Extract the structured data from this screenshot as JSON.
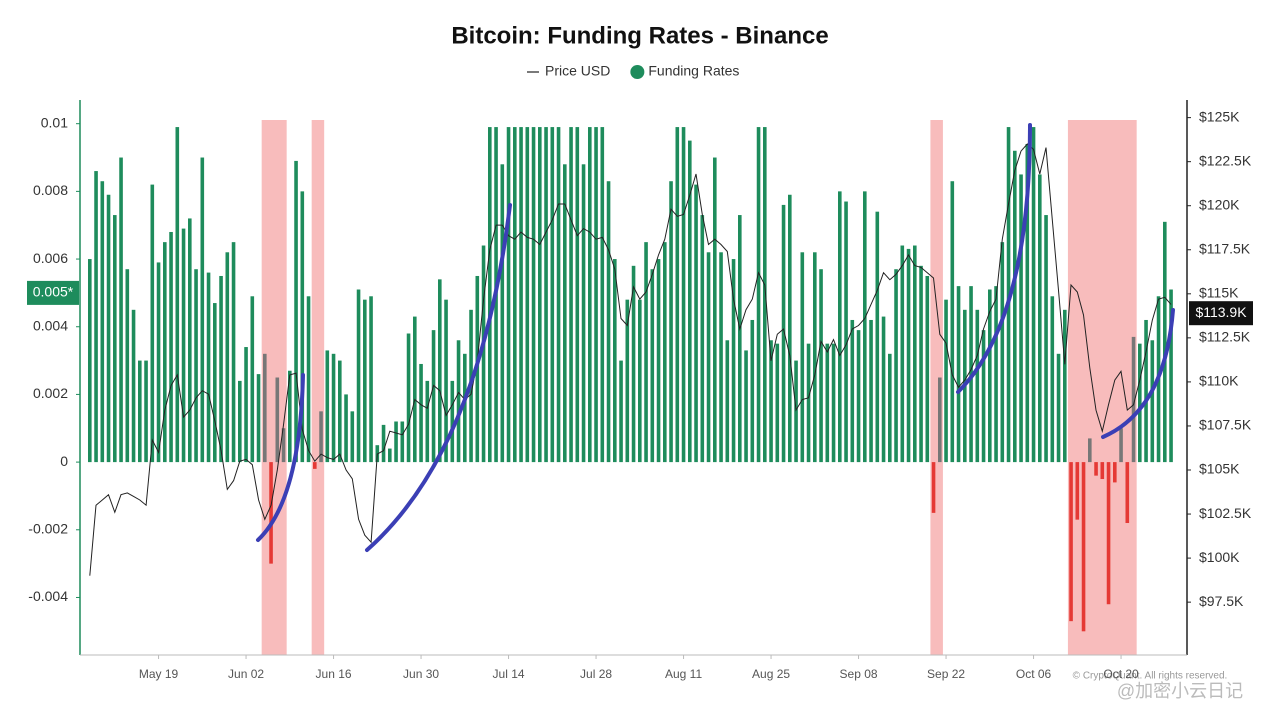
{
  "chart_data": {
    "type": "bar",
    "title": "Bitcoin: Funding Rates - Binance",
    "categories": [
      null,
      null,
      null,
      null,
      null,
      null,
      null,
      null,
      null,
      null,
      null,
      "May 19",
      null,
      null,
      null,
      null,
      null,
      null,
      null,
      null,
      null,
      null,
      null,
      null,
      null,
      "Jun 02",
      null,
      null,
      null,
      null,
      null,
      null,
      null,
      null,
      null,
      null,
      null,
      null,
      null,
      "Jun 16",
      null,
      null,
      null,
      null,
      null,
      null,
      null,
      null,
      null,
      null,
      null,
      null,
      null,
      "Jun 30",
      null,
      null,
      null,
      null,
      null,
      null,
      null,
      null,
      null,
      null,
      null,
      null,
      null,
      "Jul 14",
      null,
      null,
      null,
      null,
      null,
      null,
      null,
      null,
      null,
      null,
      null,
      null,
      null,
      "Jul 28",
      null,
      null,
      null,
      null,
      null,
      null,
      null,
      null,
      null,
      null,
      null,
      null,
      null,
      "Aug 11",
      null,
      null,
      null,
      null,
      null,
      null,
      null,
      null,
      null,
      null,
      null,
      null,
      null,
      "Aug 25",
      null,
      null,
      null,
      null,
      null,
      null,
      null,
      null,
      null,
      null,
      null,
      null,
      null,
      "Sep 08",
      null,
      null,
      null,
      null,
      null,
      null,
      null,
      null,
      null,
      null,
      null,
      null,
      null,
      "Sep 22",
      null,
      null,
      null,
      null,
      null,
      null,
      null,
      null,
      null,
      null,
      null,
      null,
      null,
      "Oct 06",
      null,
      null,
      null,
      null,
      null,
      null,
      null,
      null,
      null,
      null,
      null,
      null,
      null,
      "Oct 20",
      null,
      null,
      null,
      null,
      null,
      null,
      null,
      null
    ],
    "series": [
      {
        "name": "Price USD",
        "type": "line",
        "color": "#222222",
        "axis": "y2",
        "values": [
          99000,
          103000,
          103300,
          103600,
          102600,
          103600,
          103700,
          103500,
          103300,
          103000,
          106700,
          106000,
          108400,
          109800,
          110400,
          108000,
          108400,
          109100,
          109500,
          109300,
          107800,
          106100,
          103900,
          104400,
          105500,
          105600,
          105300,
          103300,
          102200,
          103000,
          105000,
          107600,
          110400,
          110500,
          107300,
          106100,
          105500,
          105900,
          105700,
          105600,
          105900,
          105000,
          104500,
          102200,
          101300,
          100900,
          105900,
          106100,
          107200,
          107100,
          107000,
          107600,
          109000,
          108700,
          108500,
          109800,
          109500,
          108100,
          108700,
          109400,
          109000,
          109300,
          111200,
          114700,
          117500,
          118900,
          118900,
          118300,
          118100,
          118500,
          118200,
          118100,
          117800,
          118500,
          119200,
          120100,
          120100,
          119200,
          118300,
          118700,
          118500,
          118100,
          118200,
          117500,
          116400,
          113600,
          113200,
          115400,
          114700,
          115100,
          116100,
          117200,
          118100,
          119800,
          119400,
          119500,
          120600,
          121800,
          119500,
          117800,
          118100,
          117800,
          117400,
          114700,
          113000,
          114100,
          114700,
          116200,
          115500,
          111200,
          112700,
          113000,
          111500,
          108400,
          109000,
          109100,
          110400,
          112300,
          111700,
          112400,
          111500,
          112100,
          113000,
          113200,
          113600,
          114400,
          115200,
          116200,
          115800,
          116100,
          116600,
          117200,
          116600,
          116500,
          116200,
          115900,
          112700,
          112200,
          110400,
          109700,
          110100,
          110700,
          111500,
          113000,
          114000,
          114700,
          118100,
          120100,
          122000,
          123100,
          123500,
          123200,
          121800,
          123300,
          119200,
          115200,
          111000,
          115500,
          115100,
          113800,
          110800,
          108400,
          107200,
          108700,
          110100,
          110600,
          108400,
          108700,
          110100,
          111700,
          113500,
          114700,
          114800,
          114400
        ]
      },
      {
        "name": "Funding Rates",
        "type": "bar",
        "color": "#1e8c5c",
        "values": [
          0.006,
          0.0086,
          0.0083,
          0.0079,
          0.0073,
          0.009,
          0.0057,
          0.0045,
          0.003,
          0.003,
          0.0082,
          0.0059,
          0.0065,
          0.0068,
          0.0099,
          0.0069,
          0.0072,
          0.0057,
          0.009,
          0.0056,
          0.0047,
          0.0055,
          0.0062,
          0.0065,
          0.0024,
          0.0034,
          0.0049,
          0.0026,
          0.0032,
          -0.003,
          0.0025,
          0.001,
          0.0027,
          0.0089,
          0.008,
          0.0049,
          -0.0002,
          0.0015,
          0.0033,
          0.0032,
          0.003,
          0.002,
          0.0015,
          0.0051,
          0.0048,
          0.0049,
          0.0005,
          0.0011,
          0.0004,
          0.0012,
          0.0012,
          0.0038,
          0.0043,
          0.0029,
          0.0024,
          0.0039,
          0.0054,
          0.0048,
          0.0024,
          0.0036,
          0.0032,
          0.0045,
          0.0055,
          0.0064,
          0.0099,
          0.0099,
          0.0088,
          0.0099,
          0.0099,
          0.0099,
          0.0099,
          0.0099,
          0.0099,
          0.0099,
          0.0099,
          0.0099,
          0.0088,
          0.0099,
          0.0099,
          0.0088,
          0.0099,
          0.0099,
          0.0099,
          0.0083,
          0.006,
          0.003,
          0.0048,
          0.0058,
          0.0048,
          0.0065,
          0.0057,
          0.006,
          0.0065,
          0.0083,
          0.0099,
          0.0099,
          0.0095,
          0.0082,
          0.0073,
          0.0062,
          0.009,
          0.0062,
          0.0036,
          0.006,
          0.0073,
          0.0033,
          0.0042,
          0.0099,
          0.0099,
          0.0036,
          0.0035,
          0.0076,
          0.0079,
          0.003,
          0.0062,
          0.0035,
          0.0062,
          0.0057,
          0.0035,
          0.0035,
          0.008,
          0.0077,
          0.0042,
          0.0039,
          0.008,
          0.0042,
          0.0074,
          0.0043,
          0.0032,
          0.0057,
          0.0064,
          0.0063,
          0.0064,
          0.0058,
          0.0055,
          -0.0015,
          0.0025,
          0.0048,
          0.0083,
          0.0052,
          0.0045,
          0.0052,
          0.0045,
          0.0039,
          0.0051,
          0.0052,
          0.0065,
          0.0099,
          0.0092,
          0.0085,
          0.0094,
          0.0099,
          0.0085,
          0.0073,
          0.0049,
          0.0032,
          0.0045,
          -0.0047,
          -0.0017,
          -0.005,
          0.0007,
          -0.0004,
          -0.0005,
          -0.0042,
          -0.0006,
          0.001,
          -0.0018,
          0.0037,
          0.0035,
          0.0042,
          0.0036,
          0.0049,
          0.0071,
          0.0051
        ]
      }
    ],
    "negative_color": "#e53935",
    "highlight_bar_color": "#777777",
    "highlight_color": "#f7b5b5",
    "highlights": [
      [
        28,
        31
      ],
      [
        36,
        37
      ],
      [
        135,
        136
      ],
      [
        157,
        167
      ]
    ],
    "ylim": [
      -0.0057,
      0.0107
    ],
    "yticks": [
      -0.004,
      -0.002,
      0,
      0.002,
      0.004,
      0.006,
      0.008,
      0.01
    ],
    "y2lim": [
      94500,
      126000
    ],
    "y2ticks": [
      {
        "value": 97500,
        "label": "$97.5K"
      },
      {
        "value": 100000,
        "label": "$100K"
      },
      {
        "value": 102500,
        "label": "$102.5K"
      },
      {
        "value": 105000,
        "label": "$105K"
      },
      {
        "value": 107500,
        "label": "$107.5K"
      },
      {
        "value": 110000,
        "label": "$110K"
      },
      {
        "value": 112500,
        "label": "$112.5K"
      },
      {
        "value": 115000,
        "label": "$115K"
      },
      {
        "value": 117500,
        "label": "$117.5K"
      },
      {
        "value": 120000,
        "label": "$120K"
      },
      {
        "value": 122500,
        "label": "$122.5K"
      },
      {
        "value": 125000,
        "label": "$125K"
      }
    ],
    "current_funding": {
      "value": 0.005,
      "label": "0.005*"
    },
    "current_price": {
      "value": 113900,
      "label": "$113.9K"
    },
    "grid": false,
    "legend": "top",
    "copyright": "© CryptoQuant. All rights reserved.",
    "watermark": "@加密小云日记"
  }
}
